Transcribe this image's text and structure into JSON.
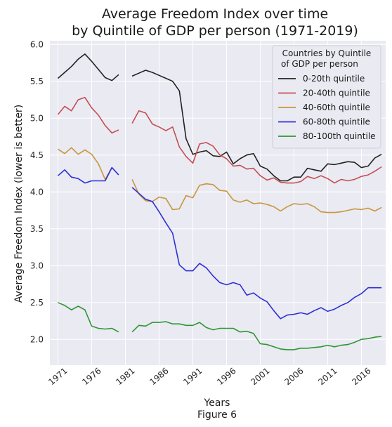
{
  "chart_data": {
    "type": "line",
    "title_line1": "Average Freedom Index over time",
    "title_line2": "by Quintile of GDP per person (1971-2019)",
    "xlabel": "Years",
    "ylabel": "Average Freedom Index (lower is better)",
    "caption": "Figure 6",
    "xlim": [
      1969.8,
      2019.6
    ],
    "ylim": [
      1.65,
      6.05
    ],
    "x_ticks": [
      1971,
      1976,
      1981,
      1986,
      1991,
      1996,
      2001,
      2006,
      2011,
      2016
    ],
    "x_tick_labels": [
      "1971",
      "1976",
      "1981",
      "1986",
      "1991",
      "1996",
      "2001",
      "2006",
      "2011",
      "2016"
    ],
    "y_ticks": [
      2.0,
      2.5,
      3.0,
      3.5,
      4.0,
      4.5,
      5.0,
      5.5,
      6.0
    ],
    "y_tick_labels": [
      "2.0",
      "2.5",
      "3.0",
      "3.5",
      "4.0",
      "4.5",
      "5.0",
      "5.5",
      "6.0"
    ],
    "grid": true,
    "background": "#eaeaf2",
    "legend": {
      "title_line1": "Countries by Quintile",
      "title_line2": "of GDP per person",
      "placement": "top-right"
    },
    "x": [
      1971,
      1972,
      1973,
      1974,
      1975,
      1976,
      1977,
      1978,
      1979,
      1980,
      1981,
      1982,
      1983,
      1984,
      1985,
      1986,
      1987,
      1988,
      1989,
      1990,
      1991,
      1992,
      1993,
      1994,
      1995,
      1996,
      1997,
      1998,
      1999,
      2000,
      2001,
      2002,
      2003,
      2004,
      2005,
      2006,
      2007,
      2008,
      2009,
      2010,
      2011,
      2012,
      2013,
      2014,
      2015,
      2016,
      2017,
      2018,
      2019
    ],
    "series": [
      {
        "name": "0-20th quintile",
        "color": "#222222",
        "values": [
          5.54,
          5.62,
          5.7,
          5.8,
          5.87,
          5.77,
          5.66,
          5.55,
          5.51,
          5.59,
          null,
          5.57,
          5.61,
          5.65,
          5.62,
          5.58,
          5.54,
          5.5,
          5.37,
          4.72,
          4.51,
          4.54,
          4.56,
          4.49,
          4.48,
          4.54,
          4.38,
          4.45,
          4.5,
          4.52,
          4.35,
          4.31,
          4.22,
          4.15,
          4.15,
          4.2,
          4.2,
          4.32,
          4.3,
          4.28,
          4.38,
          4.37,
          4.39,
          4.41,
          4.4,
          4.33,
          4.35,
          4.46,
          4.51
        ]
      },
      {
        "name": "20-40th quintile",
        "color": "#c44e52",
        "values": [
          5.05,
          5.16,
          5.1,
          5.25,
          5.28,
          5.14,
          5.04,
          4.9,
          4.8,
          4.84,
          null,
          4.93,
          5.1,
          5.07,
          4.92,
          4.88,
          4.83,
          4.88,
          4.61,
          4.48,
          4.39,
          4.65,
          4.67,
          4.62,
          4.5,
          4.45,
          4.35,
          4.36,
          4.31,
          4.32,
          4.22,
          4.16,
          4.19,
          4.13,
          4.12,
          4.12,
          4.14,
          4.21,
          4.18,
          4.22,
          4.18,
          4.12,
          4.17,
          4.15,
          4.17,
          4.21,
          4.23,
          4.28,
          4.34
        ]
      },
      {
        "name": "40-60th quintile",
        "color": "#c8963c",
        "values": [
          4.58,
          4.52,
          4.6,
          4.51,
          4.57,
          4.51,
          4.38,
          4.17,
          4.33,
          null,
          null,
          4.17,
          3.97,
          3.88,
          3.87,
          3.93,
          3.91,
          3.76,
          3.77,
          3.95,
          3.92,
          4.09,
          4.11,
          4.1,
          4.02,
          4.01,
          3.89,
          3.86,
          3.89,
          3.84,
          3.85,
          3.83,
          3.8,
          3.74,
          3.8,
          3.84,
          3.83,
          3.84,
          3.8,
          3.73,
          3.72,
          3.72,
          3.73,
          3.75,
          3.77,
          3.76,
          3.78,
          3.74,
          3.79
        ]
      },
      {
        "name": "60-80th quintile",
        "color": "#2e2ed6",
        "values": [
          4.22,
          4.3,
          4.2,
          4.18,
          4.12,
          4.15,
          4.15,
          4.15,
          4.33,
          4.23,
          null,
          4.06,
          3.98,
          3.9,
          3.87,
          3.73,
          3.58,
          3.44,
          3.01,
          2.93,
          2.93,
          3.03,
          2.97,
          2.86,
          2.77,
          2.74,
          2.77,
          2.74,
          2.6,
          2.63,
          2.56,
          2.51,
          2.39,
          2.28,
          2.33,
          2.34,
          2.36,
          2.34,
          2.39,
          2.43,
          2.38,
          2.41,
          2.46,
          2.5,
          2.57,
          2.62,
          2.7,
          2.7,
          2.7
        ]
      },
      {
        "name": "80-100th quintile",
        "color": "#2e9632",
        "values": [
          2.5,
          2.46,
          2.4,
          2.45,
          2.4,
          2.18,
          2.15,
          2.14,
          2.15,
          2.1,
          null,
          2.1,
          2.19,
          2.18,
          2.23,
          2.23,
          2.24,
          2.21,
          2.21,
          2.19,
          2.19,
          2.23,
          2.16,
          2.13,
          2.15,
          2.15,
          2.15,
          2.1,
          2.11,
          2.08,
          1.94,
          1.93,
          1.9,
          1.87,
          1.86,
          1.86,
          1.88,
          1.88,
          1.89,
          1.9,
          1.92,
          1.9,
          1.92,
          1.93,
          1.96,
          2.0,
          2.01,
          2.03,
          2.04
        ]
      }
    ]
  }
}
